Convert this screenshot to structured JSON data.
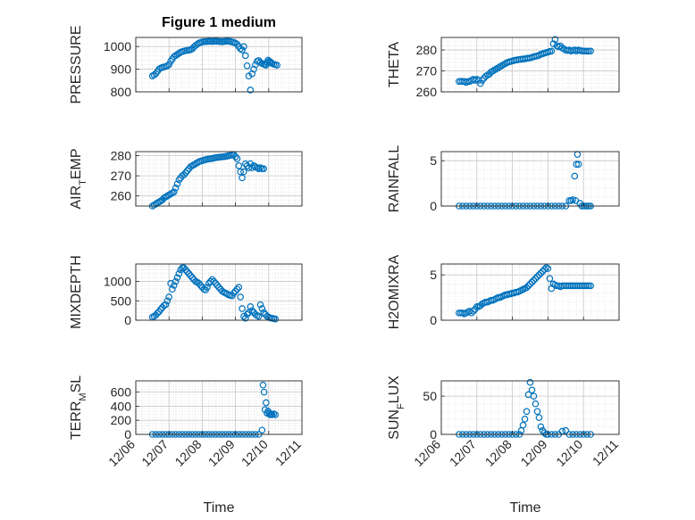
{
  "figure": {
    "title": "Figure 1 medium",
    "xlabel": "Time",
    "marker_color": "#0072BD",
    "grid": true,
    "minor_grid": true
  },
  "chart_data": [
    {
      "type": "scatter",
      "ylabel": "PRESSURE",
      "ylim": [
        800,
        1040
      ],
      "yticks": [
        800,
        900,
        1000
      ],
      "xlim": [
        6,
        11
      ],
      "x": [
        6.5,
        6.55,
        6.6,
        6.65,
        6.7,
        6.75,
        6.8,
        6.85,
        6.9,
        6.95,
        7.0,
        7.05,
        7.1,
        7.15,
        7.2,
        7.25,
        7.3,
        7.35,
        7.4,
        7.45,
        7.5,
        7.55,
        7.6,
        7.65,
        7.7,
        7.75,
        7.8,
        7.85,
        7.9,
        7.95,
        8.0,
        8.05,
        8.1,
        8.15,
        8.2,
        8.25,
        8.3,
        8.35,
        8.4,
        8.45,
        8.5,
        8.55,
        8.6,
        8.65,
        8.7,
        8.75,
        8.8,
        8.85,
        8.9,
        8.95,
        9.0,
        9.05,
        9.1,
        9.15,
        9.2,
        9.25,
        9.3,
        9.35,
        9.4,
        9.45,
        9.5,
        9.55,
        9.6,
        9.65,
        9.7,
        9.75,
        9.8,
        9.85,
        9.88,
        9.92,
        9.95,
        9.98,
        10.02,
        10.05,
        10.08,
        10.1,
        10.15,
        10.2,
        10.25
      ],
      "y": [
        870,
        875,
        880,
        890,
        900,
        905,
        908,
        910,
        912,
        915,
        920,
        935,
        945,
        955,
        960,
        965,
        970,
        975,
        978,
        980,
        982,
        983,
        984,
        986,
        990,
        998,
        1005,
        1010,
        1015,
        1018,
        1020,
        1021,
        1022,
        1022,
        1023,
        1023,
        1022,
        1023,
        1024,
        1023,
        1022,
        1022,
        1021,
        1022,
        1023,
        1024,
        1023,
        1022,
        1020,
        1018,
        1015,
        1010,
        1000,
        990,
        985,
        1000,
        960,
        915,
        870,
        808,
        880,
        900,
        920,
        935,
        938,
        930,
        925,
        922,
        920,
        918,
        930,
        940,
        935,
        932,
        928,
        925,
        922,
        920,
        918
      ]
    },
    {
      "type": "scatter",
      "ylabel": "THETA",
      "ylim": [
        260,
        286
      ],
      "yticks": [
        260,
        270,
        280
      ],
      "xlim": [
        6,
        11
      ],
      "x": [
        6.5,
        6.55,
        6.6,
        6.65,
        6.7,
        6.75,
        6.8,
        6.85,
        6.9,
        6.95,
        7.0,
        7.05,
        7.1,
        7.15,
        7.2,
        7.25,
        7.3,
        7.35,
        7.4,
        7.45,
        7.5,
        7.55,
        7.6,
        7.65,
        7.7,
        7.75,
        7.8,
        7.85,
        7.9,
        7.95,
        8.0,
        8.05,
        8.1,
        8.15,
        8.2,
        8.25,
        8.3,
        8.35,
        8.4,
        8.45,
        8.5,
        8.55,
        8.6,
        8.65,
        8.7,
        8.75,
        8.8,
        8.85,
        8.9,
        8.95,
        9.0,
        9.05,
        9.1,
        9.15,
        9.2,
        9.25,
        9.3,
        9.35,
        9.4,
        9.45,
        9.5,
        9.55,
        9.6,
        9.65,
        9.7,
        9.75,
        9.8,
        9.85,
        9.9,
        9.95,
        10.0,
        10.05,
        10.1,
        10.15,
        10.2
      ],
      "y": [
        265,
        265,
        265,
        265,
        264.5,
        265,
        265,
        265.5,
        266,
        265.5,
        266,
        265.5,
        264,
        265.5,
        266.5,
        267.5,
        268,
        268.5,
        269.5,
        270,
        270.5,
        271,
        271.5,
        272,
        272.5,
        273,
        273.5,
        274,
        274.3,
        274.5,
        274.8,
        275,
        275.2,
        275.3,
        275.5,
        275.6,
        275.7,
        275.8,
        276,
        276.1,
        276.2,
        276.5,
        276.8,
        277,
        277.2,
        277.5,
        278,
        278.2,
        278.5,
        278.8,
        279,
        279.3,
        279.5,
        283,
        285,
        282,
        281.5,
        282,
        281,
        280.5,
        280,
        279.8,
        280,
        279.5,
        279.8,
        280,
        279.5,
        280,
        279.8,
        279.6,
        279.5,
        279.5,
        279.4,
        279.5,
        279.5
      ]
    },
    {
      "type": "scatter",
      "ylabel": "AIR_TEMP",
      "ylim": [
        255,
        282
      ],
      "yticks": [
        260,
        270,
        280
      ],
      "xlim": [
        6,
        11
      ],
      "x": [
        6.5,
        6.55,
        6.6,
        6.65,
        6.7,
        6.75,
        6.8,
        6.85,
        6.9,
        6.95,
        7.0,
        7.05,
        7.1,
        7.15,
        7.2,
        7.25,
        7.3,
        7.35,
        7.4,
        7.45,
        7.5,
        7.55,
        7.6,
        7.65,
        7.7,
        7.75,
        7.8,
        7.85,
        7.9,
        7.95,
        8.0,
        8.05,
        8.1,
        8.15,
        8.2,
        8.25,
        8.3,
        8.35,
        8.4,
        8.45,
        8.5,
        8.55,
        8.6,
        8.65,
        8.7,
        8.75,
        8.8,
        8.85,
        8.9,
        8.95,
        9.0,
        9.05,
        9.1,
        9.15,
        9.2,
        9.25,
        9.3,
        9.35,
        9.4,
        9.45,
        9.5,
        9.55,
        9.6,
        9.65,
        9.7,
        9.75,
        9.8,
        9.85
      ],
      "y": [
        255,
        255.5,
        256,
        256.5,
        257,
        257.5,
        258,
        259,
        259.5,
        260,
        260.5,
        261,
        261.5,
        262,
        264,
        266,
        268,
        269,
        270,
        270.5,
        271.5,
        272.5,
        273.5,
        274.5,
        275,
        275.5,
        276,
        276.5,
        277,
        277.3,
        277.5,
        277.8,
        278,
        278.2,
        278.4,
        278.5,
        278.6,
        278.8,
        279,
        279.1,
        279.2,
        279.3,
        279.4,
        279.5,
        279.6,
        279.8,
        280,
        280.2,
        280.5,
        280.5,
        279.5,
        278.5,
        275,
        272,
        269,
        272,
        276,
        275,
        274,
        276,
        274,
        275,
        274.5,
        274,
        273.5,
        274,
        273.5,
        273.5
      ]
    },
    {
      "type": "scatter",
      "ylabel": "RAINFALL",
      "ylim": [
        0,
        6
      ],
      "yticks": [
        0,
        5
      ],
      "xlim": [
        6,
        11
      ],
      "x": [
        6.5,
        6.6,
        6.7,
        6.8,
        6.9,
        7.0,
        7.1,
        7.2,
        7.3,
        7.4,
        7.5,
        7.6,
        7.7,
        7.8,
        7.9,
        8.0,
        8.1,
        8.2,
        8.3,
        8.4,
        8.5,
        8.6,
        8.7,
        8.8,
        8.9,
        9.0,
        9.1,
        9.2,
        9.3,
        9.4,
        9.5,
        9.6,
        9.65,
        9.7,
        9.75,
        9.78,
        9.8,
        9.83,
        9.86,
        9.9,
        9.95,
        10.0,
        10.05,
        10.1,
        10.15,
        10.2
      ],
      "y": [
        0,
        0,
        0,
        0,
        0,
        0,
        0,
        0,
        0,
        0,
        0,
        0,
        0,
        0,
        0,
        0,
        0,
        0,
        0,
        0,
        0,
        0,
        0,
        0,
        0,
        0,
        0,
        0,
        0,
        0,
        0,
        0.6,
        0.6,
        0.7,
        3.3,
        0.6,
        4.6,
        5.7,
        4.6,
        0.3,
        0,
        0,
        0,
        0,
        0,
        0
      ]
    },
    {
      "type": "scatter",
      "ylabel": "MIXDEPTH",
      "ylim": [
        0,
        1450
      ],
      "yticks": [
        0,
        500,
        1000
      ],
      "xlim": [
        6,
        11
      ],
      "x": [
        6.5,
        6.55,
        6.6,
        6.65,
        6.7,
        6.75,
        6.8,
        6.85,
        6.9,
        6.95,
        7.0,
        7.05,
        7.1,
        7.15,
        7.2,
        7.25,
        7.3,
        7.35,
        7.4,
        7.45,
        7.5,
        7.55,
        7.6,
        7.65,
        7.7,
        7.75,
        7.8,
        7.85,
        7.9,
        7.95,
        8.0,
        8.05,
        8.1,
        8.15,
        8.2,
        8.25,
        8.3,
        8.35,
        8.4,
        8.45,
        8.5,
        8.55,
        8.6,
        8.65,
        8.7,
        8.75,
        8.8,
        8.85,
        8.9,
        8.95,
        9.0,
        9.05,
        9.1,
        9.15,
        9.2,
        9.25,
        9.3,
        9.35,
        9.4,
        9.45,
        9.5,
        9.55,
        9.6,
        9.65,
        9.7,
        9.75,
        9.8,
        9.85,
        9.9,
        9.95,
        10.0,
        10.05,
        10.1,
        10.15,
        10.2
      ],
      "y": [
        80,
        100,
        130,
        180,
        220,
        280,
        330,
        380,
        400,
        500,
        600,
        950,
        800,
        900,
        1000,
        1100,
        1200,
        1300,
        1350,
        1350,
        1300,
        1250,
        1200,
        1150,
        1100,
        1050,
        1000,
        980,
        950,
        900,
        850,
        800,
        780,
        850,
        950,
        1000,
        1050,
        1000,
        950,
        900,
        850,
        800,
        750,
        720,
        700,
        680,
        650,
        640,
        630,
        700,
        750,
        800,
        850,
        600,
        300,
        100,
        50,
        150,
        200,
        350,
        250,
        200,
        150,
        120,
        100,
        400,
        300,
        200,
        150,
        100,
        80,
        60,
        50,
        40,
        30
      ]
    },
    {
      "type": "scatter",
      "ylabel": "H2OMIXRA",
      "ylim": [
        0,
        6.2
      ],
      "yticks": [
        0,
        5
      ],
      "xlim": [
        6,
        11
      ],
      "x": [
        6.5,
        6.55,
        6.6,
        6.65,
        6.7,
        6.75,
        6.8,
        6.85,
        6.9,
        6.95,
        7.0,
        7.05,
        7.1,
        7.15,
        7.2,
        7.25,
        7.3,
        7.35,
        7.4,
        7.45,
        7.5,
        7.55,
        7.6,
        7.65,
        7.7,
        7.75,
        7.8,
        7.85,
        7.9,
        7.95,
        8.0,
        8.05,
        8.1,
        8.15,
        8.2,
        8.25,
        8.3,
        8.35,
        8.4,
        8.45,
        8.5,
        8.55,
        8.6,
        8.65,
        8.7,
        8.75,
        8.8,
        8.85,
        8.9,
        8.95,
        9.0,
        9.05,
        9.1,
        9.15,
        9.2,
        9.25,
        9.3,
        9.35,
        9.4,
        9.45,
        9.5,
        9.55,
        9.6,
        9.65,
        9.7,
        9.75,
        9.8,
        9.85,
        9.9,
        9.95,
        10.0,
        10.05,
        10.1,
        10.15,
        10.2
      ],
      "y": [
        0.8,
        0.8,
        0.8,
        0.7,
        0.8,
        0.9,
        1.0,
        0.8,
        1.0,
        1.2,
        1.5,
        1.5,
        1.6,
        1.8,
        1.9,
        2.0,
        2.0,
        2.1,
        2.2,
        2.2,
        2.3,
        2.4,
        2.5,
        2.5,
        2.6,
        2.7,
        2.8,
        2.8,
        2.9,
        2.9,
        3.0,
        3.0,
        3.1,
        3.1,
        3.2,
        3.3,
        3.4,
        3.5,
        3.6,
        3.8,
        4.0,
        4.2,
        4.4,
        4.6,
        4.8,
        5.0,
        5.2,
        5.4,
        5.6,
        5.8,
        5.7,
        4.6,
        3.5,
        4.0,
        3.9,
        3.8,
        3.8,
        3.7,
        3.8,
        3.8,
        3.8,
        3.8,
        3.8,
        3.8,
        3.8,
        3.8,
        3.8,
        3.8,
        3.8,
        3.8,
        3.8,
        3.8,
        3.8,
        3.8,
        3.8
      ]
    },
    {
      "type": "scatter",
      "ylabel": "TERR_MSL",
      "ylim": [
        0,
        760
      ],
      "yticks": [
        0,
        200,
        400,
        600
      ],
      "xlim": [
        6,
        11
      ],
      "x": [
        6.5,
        6.6,
        6.7,
        6.8,
        6.9,
        7.0,
        7.1,
        7.2,
        7.3,
        7.4,
        7.5,
        7.6,
        7.7,
        7.8,
        7.9,
        8.0,
        8.1,
        8.2,
        8.3,
        8.4,
        8.5,
        8.6,
        8.7,
        8.8,
        8.9,
        9.0,
        9.1,
        9.2,
        9.3,
        9.4,
        9.5,
        9.6,
        9.7,
        9.8,
        9.83,
        9.86,
        9.89,
        9.92,
        9.95,
        9.98,
        10.01,
        10.04,
        10.07,
        10.1,
        10.15,
        10.2
      ],
      "y": [
        0,
        0,
        0,
        0,
        0,
        0,
        0,
        0,
        0,
        0,
        0,
        0,
        0,
        0,
        0,
        0,
        0,
        0,
        0,
        0,
        0,
        0,
        0,
        0,
        0,
        0,
        0,
        0,
        0,
        0,
        0,
        0,
        0,
        60,
        700,
        600,
        350,
        450,
        300,
        330,
        300,
        280,
        290,
        280,
        290,
        280
      ]
    },
    {
      "type": "scatter",
      "ylabel": "SUN_FLUX",
      "ylim": [
        0,
        70
      ],
      "yticks": [
        0,
        50
      ],
      "xlim": [
        6,
        11
      ],
      "x": [
        6.5,
        6.6,
        6.7,
        6.8,
        6.9,
        7.0,
        7.1,
        7.2,
        7.3,
        7.4,
        7.5,
        7.6,
        7.7,
        7.8,
        7.9,
        8.0,
        8.1,
        8.2,
        8.25,
        8.3,
        8.35,
        8.4,
        8.45,
        8.5,
        8.55,
        8.6,
        8.65,
        8.7,
        8.75,
        8.8,
        8.85,
        8.9,
        8.95,
        9.0,
        9.1,
        9.2,
        9.3,
        9.4,
        9.5,
        9.6,
        9.7,
        9.8,
        9.9,
        10.0,
        10.1,
        10.2
      ],
      "y": [
        0,
        0,
        0,
        0,
        0,
        0,
        0,
        0,
        0,
        0,
        0,
        0,
        0,
        0,
        0,
        0,
        0,
        0,
        5,
        12,
        20,
        30,
        52,
        68,
        58,
        50,
        40,
        30,
        22,
        10,
        5,
        2,
        0,
        0,
        0,
        0,
        0,
        4,
        5,
        0,
        0,
        0,
        0,
        0,
        0,
        0
      ]
    }
  ],
  "x_tick_labels": [
    "12/06",
    "12/07",
    "12/08",
    "12/09",
    "12/10",
    "12/11"
  ]
}
